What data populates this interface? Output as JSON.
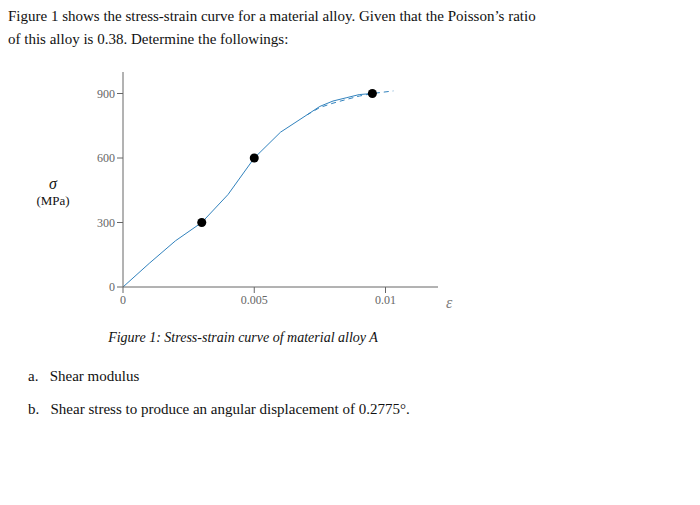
{
  "chart_data": {
    "type": "line",
    "title": "Figure 1 shows the stress-strain curve for a material alloy. Given that the Poisson’s ratio",
    "subtitle": "of this alloy is 0.38. Determine the followings:",
    "x_label": "ε",
    "y_label": [
      "σ",
      "(MPa)"
    ],
    "caption": "Figure 1: Stress-strain curve of material alloy A",
    "annotations": [
      "a.   Shear modulus",
      "b.   Shear stress to produce an angular displacement of 0.2775°."
    ],
    "xlim": [
      0,
      0.012
    ],
    "ylim": [
      0,
      1000
    ],
    "xticks": [
      0,
      0.005,
      0.01
    ],
    "yticks": [
      0,
      300,
      600,
      900
    ],
    "grid": false,
    "series": [
      {
        "type": "line",
        "line_style": "solid",
        "x": [
          0.0,
          0.001,
          0.002,
          0.003,
          0.004,
          0.005,
          0.006,
          0.007,
          0.0075,
          0.008,
          0.0085,
          0.009,
          0.0095
        ],
        "values": [
          0,
          110,
          215,
          300,
          430,
          600,
          720,
          800,
          840,
          865,
          880,
          895,
          900
        ]
      },
      {
        "type": "line",
        "line_style": "dashed",
        "x": [
          0.007,
          0.0075,
          0.008,
          0.0085,
          0.009,
          0.0095,
          0.0103
        ],
        "values": [
          800,
          835,
          855,
          872,
          888,
          900,
          912
        ]
      },
      {
        "type": "scatter",
        "marker": "circle",
        "x": [
          0.003,
          0.005,
          0.0095
        ],
        "values": [
          300,
          600,
          900
        ]
      }
    ]
  }
}
